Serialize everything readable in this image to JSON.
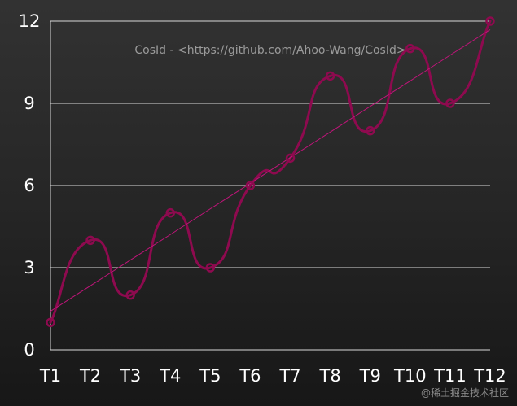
{
  "chart_data": {
    "type": "line",
    "categories": [
      "T1",
      "T2",
      "T3",
      "T4",
      "T5",
      "T6",
      "T7",
      "T8",
      "T9",
      "T10",
      "T11",
      "T12"
    ],
    "series": [
      {
        "values": [
          1,
          4,
          2,
          5,
          3,
          6,
          7,
          10,
          8,
          11,
          9,
          12
        ],
        "smooth": true,
        "color": "#8e0a4f",
        "markers": "hollow-circle"
      },
      {
        "values": [
          1.41,
          2.34,
          3.28,
          4.21,
          5.15,
          6.08,
          7.02,
          7.95,
          8.89,
          9.82,
          10.76,
          11.69
        ],
        "color": "#c0157a",
        "style": "thin-trend"
      }
    ],
    "yticks": [
      0,
      3,
      6,
      9,
      12
    ],
    "ylim": [
      0,
      12
    ],
    "grid": true,
    "annotation": "CosId - <https://github.com/Ahoo-Wang/CosId>"
  },
  "colors": {
    "background": "#262626",
    "grid": "#d8d8d8",
    "text": "#ffffff"
  },
  "watermark": "@稀土掘金技术社区"
}
